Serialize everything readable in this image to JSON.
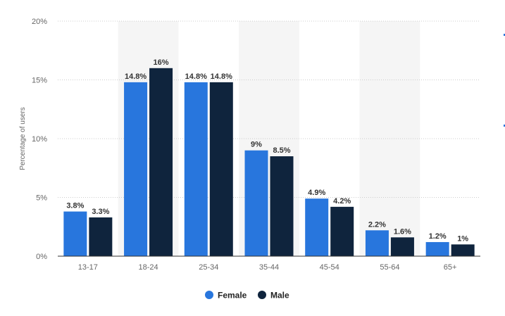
{
  "chart_data": {
    "type": "bar",
    "categories": [
      "13-17",
      "18-24",
      "25-34",
      "35-44",
      "45-54",
      "55-64",
      "65+"
    ],
    "series": [
      {
        "name": "Female",
        "color": "#2876dd",
        "values": [
          3.8,
          14.8,
          14.8,
          9,
          4.9,
          2.2,
          1.2
        ],
        "labels": [
          "3.8%",
          "14.8%",
          "14.8%",
          "9%",
          "4.9%",
          "2.2%",
          "1.2%"
        ]
      },
      {
        "name": "Male",
        "color": "#0f243d",
        "values": [
          3.3,
          16,
          14.8,
          8.5,
          4.2,
          1.6,
          1
        ],
        "labels": [
          "3.3%",
          "16%",
          "14.8%",
          "8.5%",
          "4.2%",
          "1.6%",
          "1%"
        ]
      }
    ],
    "ylabel": "Percentage of users",
    "xlabel": "",
    "ylim": [
      0,
      20
    ],
    "yticks": [
      0,
      5,
      10,
      15,
      20
    ],
    "ytick_labels": [
      "0%",
      "5%",
      "10%",
      "15%",
      "20%"
    ],
    "grid": true,
    "grid_style": "dotted",
    "alternating_band_color": "#f5f5f5",
    "legend_position": "bottom-center"
  }
}
